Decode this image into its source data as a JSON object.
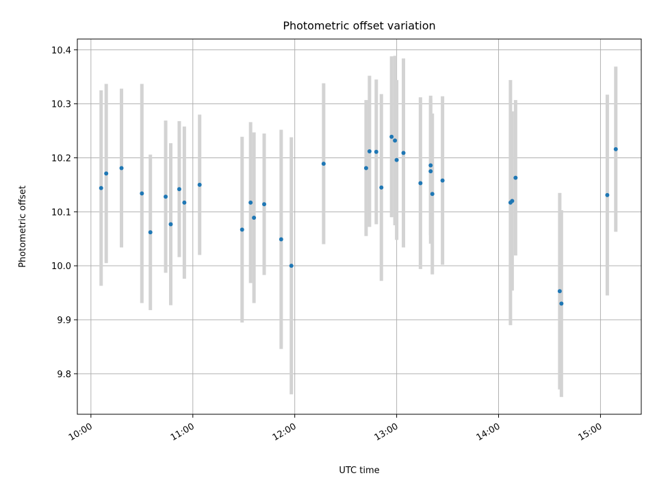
{
  "chart_data": {
    "type": "scatter",
    "title": "Photometric offset variation",
    "xlabel": "UTC time",
    "ylabel": "Photometric offset",
    "x_ticks": [
      "10:00",
      "11:00",
      "12:00",
      "13:00",
      "14:00",
      "15:00"
    ],
    "y_ticks": [
      "9.8",
      "9.9",
      "10.0",
      "10.1",
      "10.2",
      "10.3",
      "10.4"
    ],
    "xlim": [
      "09:52",
      "15:24"
    ],
    "ylim": [
      9.725,
      10.42
    ],
    "grid": true,
    "errorbar_color": "#d3d3d3",
    "marker_color": "#1f77b4",
    "points": [
      {
        "x": "10:06",
        "y": 10.144,
        "yerr": 0.181
      },
      {
        "x": "10:09",
        "y": 10.171,
        "yerr": 0.166
      },
      {
        "x": "10:18",
        "y": 10.181,
        "yerr": 0.147
      },
      {
        "x": "10:30",
        "y": 10.134,
        "yerr": 0.203
      },
      {
        "x": "10:35",
        "y": 10.062,
        "yerr": 0.144
      },
      {
        "x": "10:44",
        "y": 10.128,
        "yerr": 0.141
      },
      {
        "x": "10:47",
        "y": 10.077,
        "yerr": 0.15
      },
      {
        "x": "10:52",
        "y": 10.142,
        "yerr": 0.126
      },
      {
        "x": "10:55",
        "y": 10.117,
        "yerr": 0.141
      },
      {
        "x": "11:04",
        "y": 10.15,
        "yerr": 0.13
      },
      {
        "x": "11:29",
        "y": 10.067,
        "yerr": 0.172
      },
      {
        "x": "11:34",
        "y": 10.117,
        "yerr": 0.149
      },
      {
        "x": "11:36",
        "y": 10.089,
        "yerr": 0.158
      },
      {
        "x": "11:42",
        "y": 10.114,
        "yerr": 0.131
      },
      {
        "x": "11:52",
        "y": 10.049,
        "yerr": 0.203
      },
      {
        "x": "11:58",
        "y": 10.0,
        "yerr": 0.238
      },
      {
        "x": "12:17",
        "y": 10.189,
        "yerr": 0.149
      },
      {
        "x": "12:42",
        "y": 10.181,
        "yerr": 0.126
      },
      {
        "x": "12:44",
        "y": 10.212,
        "yerr": 0.14
      },
      {
        "x": "12:48",
        "y": 10.211,
        "yerr": 0.134
      },
      {
        "x": "12:51",
        "y": 10.145,
        "yerr": 0.173
      },
      {
        "x": "12:57",
        "y": 10.239,
        "yerr": 0.149
      },
      {
        "x": "12:59",
        "y": 10.232,
        "yerr": 0.157
      },
      {
        "x": "13:00",
        "y": 10.196,
        "yerr": 0.148
      },
      {
        "x": "13:04",
        "y": 10.209,
        "yerr": 0.175
      },
      {
        "x": "13:14",
        "y": 10.153,
        "yerr": 0.159
      },
      {
        "x": "13:20",
        "y": 10.186,
        "yerr": 0.129
      },
      {
        "x": "13:20",
        "y": 10.175,
        "yerr": 0.134
      },
      {
        "x": "13:21",
        "y": 10.133,
        "yerr": 0.149
      },
      {
        "x": "13:27",
        "y": 10.158,
        "yerr": 0.156
      },
      {
        "x": "14:07",
        "y": 10.117,
        "yerr": 0.227
      },
      {
        "x": "14:08",
        "y": 10.12,
        "yerr": 0.166
      },
      {
        "x": "14:10",
        "y": 10.163,
        "yerr": 0.144
      },
      {
        "x": "14:36",
        "y": 9.953,
        "yerr": 0.182
      },
      {
        "x": "14:37",
        "y": 9.93,
        "yerr": 0.173
      },
      {
        "x": "15:04",
        "y": 10.131,
        "yerr": 0.186
      },
      {
        "x": "15:09",
        "y": 10.216,
        "yerr": 0.153
      }
    ]
  }
}
